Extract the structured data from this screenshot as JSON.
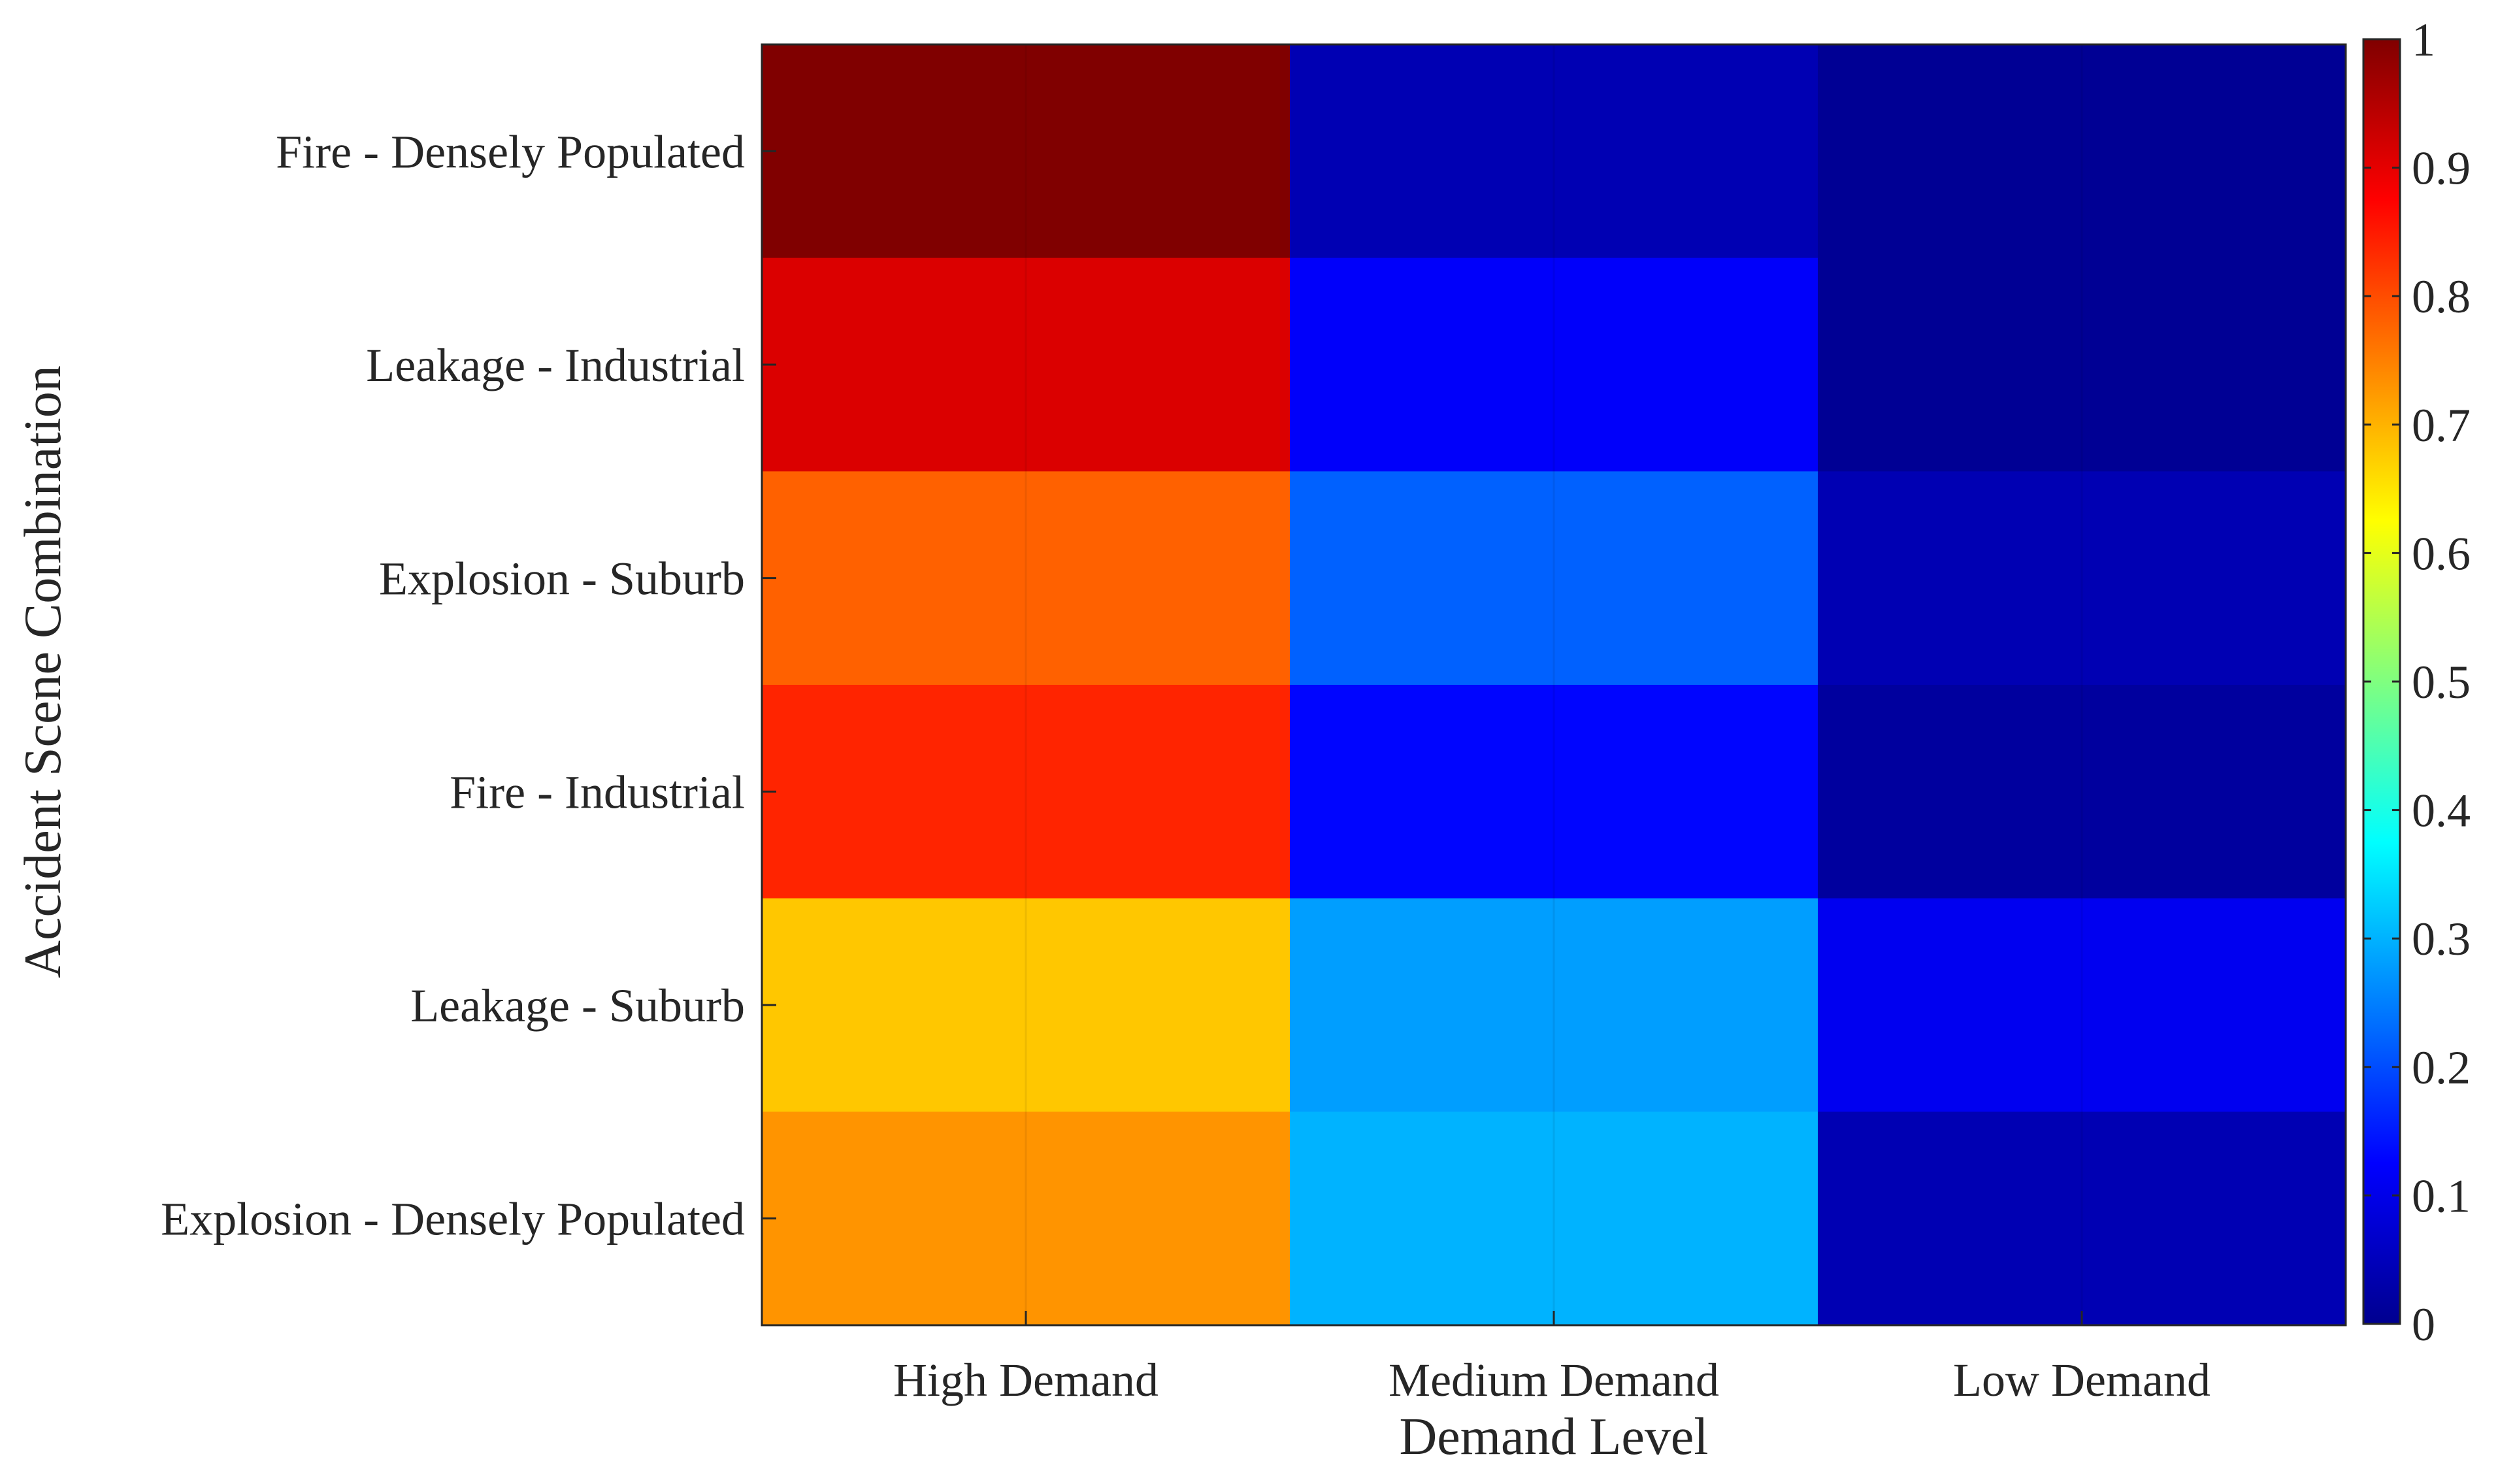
{
  "chart_data": {
    "type": "heatmap",
    "title": "",
    "xlabel": "Demand Level",
    "ylabel": "Accident Scene Combination",
    "x_categories": [
      "High Demand",
      "Medium Demand",
      "Low Demand"
    ],
    "y_categories": [
      "Fire - Densely Populated",
      "Leakage - Industrial",
      "Explosion - Suburb",
      "Fire - Industrial",
      "Leakage - Suburb",
      "Explosion - Densely Populated"
    ],
    "values": [
      [
        1.0,
        0.05,
        0.02
      ],
      [
        0.91,
        0.12,
        0.02
      ],
      [
        0.78,
        0.22,
        0.05
      ],
      [
        0.84,
        0.13,
        0.03
      ],
      [
        0.68,
        0.28,
        0.11
      ],
      [
        0.73,
        0.3,
        0.05
      ]
    ],
    "colormap": "jet",
    "colorbar": {
      "range": [
        0,
        1
      ],
      "ticks": [
        "0",
        "0.1",
        "0.2",
        "0.3",
        "0.4",
        "0.5",
        "0.6",
        "0.7",
        "0.8",
        "0.9",
        "1"
      ],
      "position": "right"
    },
    "grid": false
  }
}
